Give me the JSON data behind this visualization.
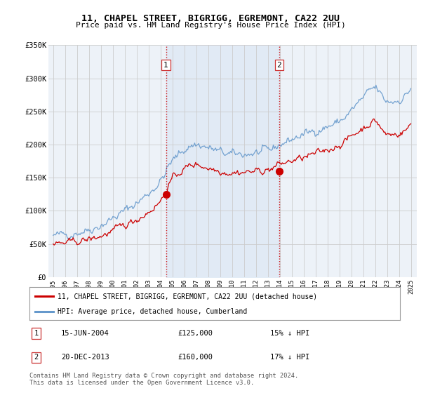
{
  "title": "11, CHAPEL STREET, BIGRIGG, EGREMONT, CA22 2UU",
  "subtitle": "Price paid vs. HM Land Registry's House Price Index (HPI)",
  "ylim": [
    0,
    350000
  ],
  "yticks": [
    0,
    50000,
    100000,
    150000,
    200000,
    250000,
    300000,
    350000
  ],
  "ytick_labels": [
    "£0",
    "£50K",
    "£100K",
    "£150K",
    "£200K",
    "£250K",
    "£300K",
    "£350K"
  ],
  "xstart_year": 1995,
  "xend_year": 2025,
  "sale1_date": 2004.46,
  "sale1_price": 125000,
  "sale2_date": 2013.96,
  "sale2_price": 160000,
  "red_line_color": "#cc0000",
  "blue_line_color": "#6699cc",
  "blue_fill_color": "#dce8f5",
  "grid_color": "#cccccc",
  "vline_color": "#cc0000",
  "legend_label_red": "11, CHAPEL STREET, BIGRIGG, EGREMONT, CA22 2UU (detached house)",
  "legend_label_blue": "HPI: Average price, detached house, Cumberland",
  "sale1_info": "15-JUN-2004",
  "sale1_amount": "£125,000",
  "sale1_hpi": "15% ↓ HPI",
  "sale2_info": "20-DEC-2013",
  "sale2_amount": "£160,000",
  "sale2_hpi": "17% ↓ HPI",
  "footer": "Contains HM Land Registry data © Crown copyright and database right 2024.\nThis data is licensed under the Open Government Licence v3.0.",
  "background_color": "#e8eef5",
  "chart_bg_color": "#edf2f8",
  "hpi_keypoints_x": [
    1995,
    1998,
    2001,
    2004,
    2005,
    2007,
    2008,
    2010,
    2013,
    2014,
    2016,
    2019,
    2021,
    2022,
    2023,
    2025
  ],
  "hpi_keypoints_y": [
    63000,
    72000,
    100000,
    145000,
    175000,
    200000,
    195000,
    185000,
    190000,
    200000,
    215000,
    235000,
    270000,
    285000,
    265000,
    285000
  ],
  "red_keypoints_x": [
    1995,
    1998,
    2001,
    2004,
    2005,
    2007,
    2008,
    2010,
    2013,
    2014,
    2016,
    2019,
    2021,
    2022,
    2023,
    2025
  ],
  "red_keypoints_y": [
    50000,
    57000,
    78000,
    115000,
    148000,
    170000,
    165000,
    158000,
    162000,
    170000,
    180000,
    200000,
    225000,
    235000,
    215000,
    230000
  ]
}
